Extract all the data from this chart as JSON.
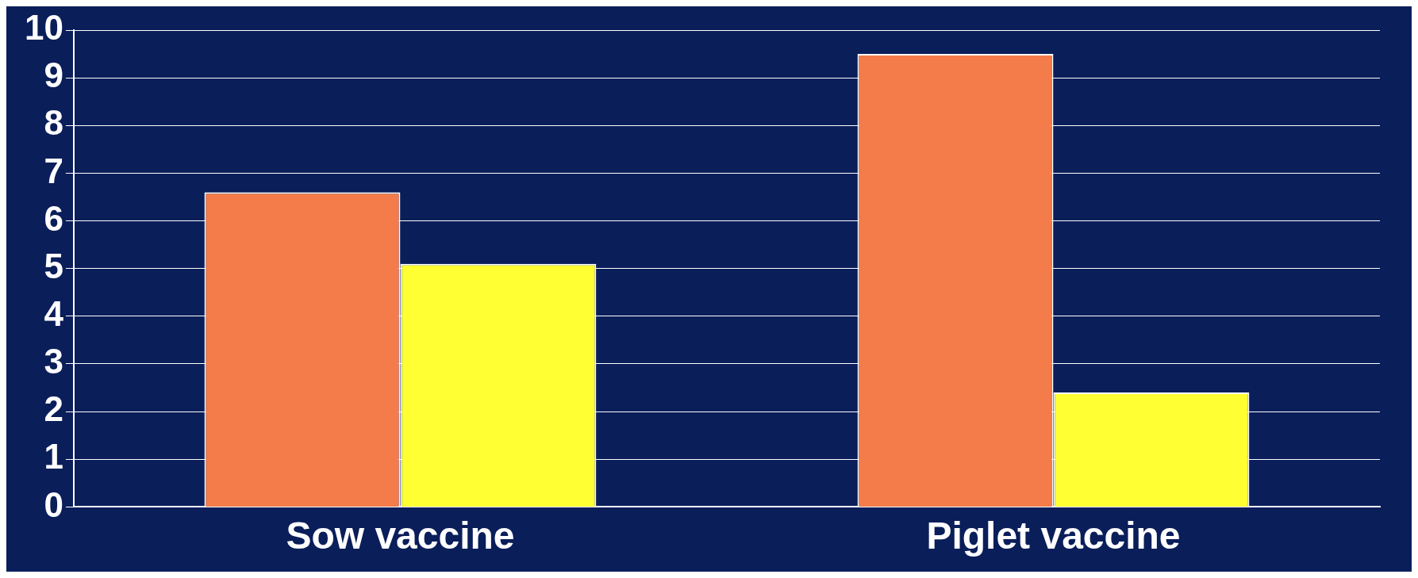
{
  "chart_data": {
    "type": "bar",
    "categories": [
      "Sow vaccine",
      "Piglet vaccine"
    ],
    "series": [
      {
        "color": "#f47c4a",
        "values": [
          6.6,
          9.5
        ]
      },
      {
        "color": "#ffff33",
        "values": [
          5.1,
          2.4
        ]
      }
    ],
    "ylim": [
      0,
      10
    ],
    "yticks": [
      0,
      1,
      2,
      3,
      4,
      5,
      6,
      7,
      8,
      9,
      10
    ],
    "grid": "y",
    "legend": false
  }
}
